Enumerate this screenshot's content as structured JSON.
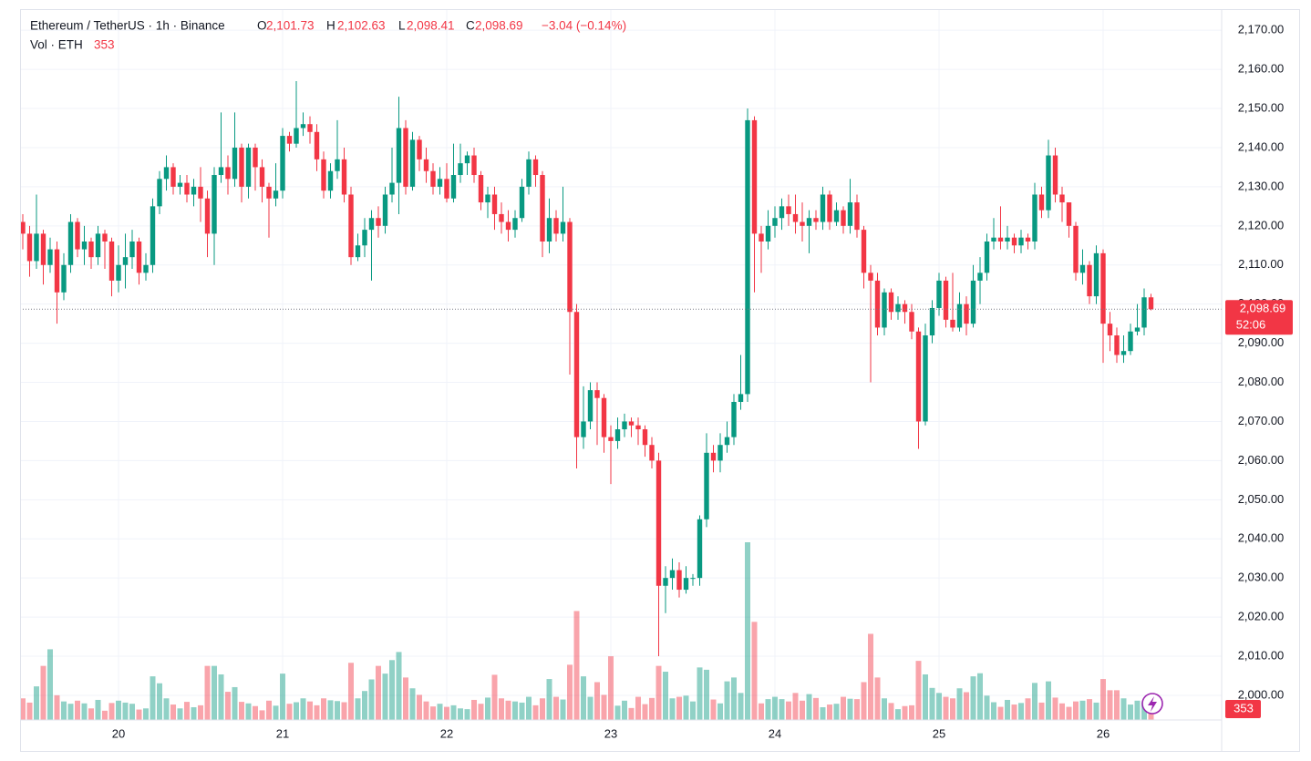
{
  "chart_data": {
    "type": "candlestick",
    "symbol": "Ethereum / TetherUS · 1h · Binance",
    "ohlc_legend": [
      {
        "key": "O",
        "value": 2101.73,
        "label": "2,101.73"
      },
      {
        "key": "H",
        "value": 2102.63,
        "label": "2,102.63"
      },
      {
        "key": "L",
        "value": 2098.41,
        "label": "2,098.41"
      },
      {
        "key": "C",
        "value": 2098.69,
        "label": "2,098.69"
      }
    ],
    "change": {
      "value": -3.04,
      "label": "−3.04 (−0.14%)"
    },
    "volume_title": "Vol · ETH",
    "categories": [
      null,
      null,
      null,
      null,
      null,
      null,
      null,
      null,
      null,
      null,
      null,
      null,
      null,
      null,
      "20",
      null,
      null,
      null,
      null,
      null,
      null,
      null,
      null,
      null,
      null,
      null,
      null,
      null,
      null,
      null,
      null,
      null,
      null,
      null,
      null,
      null,
      null,
      null,
      "21",
      null,
      null,
      null,
      null,
      null,
      null,
      null,
      null,
      null,
      null,
      null,
      null,
      null,
      null,
      null,
      null,
      null,
      null,
      null,
      null,
      null,
      null,
      null,
      "22",
      null,
      null,
      null,
      null,
      null,
      null,
      null,
      null,
      null,
      null,
      null,
      null,
      null,
      null,
      null,
      null,
      null,
      null,
      null,
      null,
      null,
      null,
      null,
      "23",
      null,
      null,
      null,
      null,
      null,
      null,
      null,
      null,
      null,
      null,
      null,
      null,
      null,
      null,
      null,
      null,
      null,
      null,
      null,
      null,
      null,
      null,
      null,
      "24",
      null,
      null,
      null,
      null,
      null,
      null,
      null,
      null,
      null,
      null,
      null,
      null,
      null,
      null,
      null,
      null,
      null,
      null,
      null,
      null,
      null,
      null,
      null,
      "25",
      null,
      null,
      null,
      null,
      null,
      null,
      null,
      null,
      null,
      null,
      null,
      null,
      null,
      null,
      null,
      null,
      null,
      null,
      null,
      null,
      null,
      null,
      null,
      "26",
      null,
      null,
      null,
      null,
      null,
      null,
      null
    ],
    "open": [
      2121,
      2118,
      2111,
      2118,
      2110,
      2114,
      2103,
      2110,
      2121,
      2114,
      2116,
      2112,
      2118,
      2116,
      2106,
      2110,
      2112,
      2116,
      2108,
      2110,
      2125,
      2132,
      2135,
      2130,
      2131,
      2128,
      2130,
      2127,
      2118,
      2133,
      2135,
      2132,
      2140,
      2130,
      2140,
      2135,
      2130,
      2127,
      2129,
      2143,
      2141,
      2145,
      2146,
      2144,
      2137,
      2129,
      2134,
      2137,
      2128,
      2112,
      2115,
      2119,
      2122,
      2120,
      2128,
      2131,
      2145,
      2130,
      2142,
      2137,
      2134,
      2130,
      2132,
      2127,
      2133,
      2136,
      2138,
      2133,
      2126,
      2128,
      2123,
      2121,
      2119,
      2122,
      2130,
      2137,
      2133,
      2116,
      2122,
      2118,
      2121,
      2098,
      2066,
      2070,
      2078,
      2076,
      2066,
      2065,
      2068,
      2070,
      2069,
      2068,
      2064,
      2060,
      2028,
      2030,
      2032,
      2027,
      2030,
      2030,
      2045,
      2062,
      2060,
      2064,
      2066,
      2075,
      2077,
      2147,
      2118,
      2116,
      2120,
      2122,
      2125,
      2123,
      2121,
      2120,
      2122,
      2121,
      2128,
      2121,
      2124,
      2120,
      2126,
      2119,
      2108,
      2106,
      2094,
      2103,
      2098,
      2100,
      2098,
      2093,
      2070,
      2092,
      2099,
      2106,
      2096,
      2094,
      2100,
      2095,
      2106,
      2108,
      2116,
      2117,
      2116,
      2117,
      2115,
      2117,
      2116,
      2128,
      2124,
      2138,
      2128,
      2126,
      2120,
      2108,
      2110,
      2102,
      2113,
      2095,
      2092,
      2087,
      2088,
      2093,
      2094,
      2101.73
    ],
    "high": [
      2123,
      2120,
      2128,
      2119,
      2117,
      2116,
      2113,
      2123,
      2122,
      2120,
      2117,
      2120,
      2119,
      2117,
      2115,
      2118,
      2119,
      2117,
      2113,
      2127,
      2134,
      2138,
      2136,
      2133,
      2133,
      2132,
      2135,
      2129,
      2135,
      2149,
      2138,
      2149,
      2141,
      2141,
      2141,
      2137,
      2131,
      2136,
      2145,
      2144,
      2157,
      2149,
      2148,
      2146,
      2139,
      2136,
      2147,
      2140,
      2130,
      2118,
      2122,
      2124,
      2125,
      2130,
      2140,
      2153,
      2147,
      2144,
      2143,
      2140,
      2136,
      2135,
      2136,
      2141,
      2141,
      2139,
      2140,
      2134,
      2130,
      2130,
      2126,
      2124,
      2124,
      2132,
      2139,
      2138,
      2134,
      2127,
      2124,
      2130,
      2122,
      2100,
      2079,
      2080,
      2080,
      2077,
      2069,
      2071,
      2072,
      2071,
      2071,
      2069,
      2066,
      2062,
      2033,
      2035,
      2034,
      2033,
      2031,
      2046,
      2067,
      2064,
      2067,
      2070,
      2077,
      2087,
      2150,
      2148,
      2120,
      2124,
      2125,
      2127,
      2128,
      2128,
      2126,
      2124,
      2124,
      2130,
      2129,
      2126,
      2125,
      2132,
      2128,
      2120,
      2110,
      2108,
      2104,
      2104,
      2102,
      2101,
      2100,
      2094,
      2095,
      2101,
      2108,
      2107,
      2108,
      2103,
      2102,
      2110,
      2112,
      2118,
      2122,
      2125,
      2120,
      2118,
      2119,
      2118,
      2131,
      2130,
      2142,
      2140,
      2130,
      2126,
      2121,
      2114,
      2111,
      2115,
      2114,
      2098,
      2094,
      2092,
      2095,
      2100,
      2104,
      2102.63
    ],
    "low": [
      2114,
      2107,
      2109,
      2105,
      2108,
      2095,
      2101,
      2108,
      2112,
      2110,
      2109,
      2110,
      2109,
      2102,
      2103,
      2104,
      2109,
      2105,
      2106,
      2108,
      2123,
      2129,
      2128,
      2128,
      2126,
      2125,
      2121,
      2112,
      2110,
      2131,
      2128,
      2130,
      2126,
      2127,
      2129,
      2126,
      2117,
      2125,
      2127,
      2139,
      2140,
      2143,
      2141,
      2134,
      2127,
      2127,
      2132,
      2126,
      2110,
      2111,
      2112,
      2106,
      2117,
      2118,
      2126,
      2123,
      2128,
      2129,
      2134,
      2131,
      2128,
      2128,
      2126,
      2126,
      2131,
      2133,
      2131,
      2124,
      2122,
      2119,
      2118,
      2116,
      2117,
      2121,
      2128,
      2130,
      2112,
      2113,
      2116,
      2116,
      2082,
      2058,
      2063,
      2068,
      2064,
      2062,
      2054,
      2063,
      2066,
      2066,
      2064,
      2061,
      2058,
      2010,
      2021,
      2027,
      2025,
      2026,
      2028,
      2028,
      2043,
      2057,
      2057,
      2062,
      2064,
      2073,
      2075,
      2103,
      2108,
      2114,
      2117,
      2119,
      2120,
      2118,
      2116,
      2113,
      2119,
      2119,
      2119,
      2120,
      2118,
      2118,
      2117,
      2104,
      2080,
      2092,
      2092,
      2096,
      2096,
      2095,
      2091,
      2063,
      2069,
      2090,
      2097,
      2094,
      2093,
      2093,
      2092,
      2094,
      2100,
      2106,
      2114,
      2114,
      2114,
      2113,
      2113,
      2114,
      2114,
      2122,
      2122,
      2126,
      2121,
      2117,
      2106,
      2105,
      2100,
      2100,
      2085,
      2088,
      2085,
      2085,
      2087,
      2092,
      2092,
      2098.41
    ],
    "close": [
      2118,
      2111,
      2118,
      2110,
      2114,
      2103,
      2110,
      2121,
      2114,
      2116,
      2112,
      2118,
      2116,
      2106,
      2110,
      2112,
      2116,
      2108,
      2110,
      2125,
      2132,
      2135,
      2130,
      2131,
      2128,
      2130,
      2127,
      2118,
      2133,
      2135,
      2132,
      2140,
      2130,
      2140,
      2135,
      2130,
      2127,
      2129,
      2143,
      2141,
      2145,
      2146,
      2144,
      2137,
      2129,
      2134,
      2137,
      2128,
      2112,
      2115,
      2119,
      2122,
      2120,
      2128,
      2131,
      2145,
      2130,
      2142,
      2137,
      2134,
      2130,
      2132,
      2127,
      2133,
      2136,
      2138,
      2133,
      2126,
      2128,
      2123,
      2121,
      2119,
      2122,
      2130,
      2137,
      2133,
      2116,
      2122,
      2118,
      2121,
      2098,
      2066,
      2070,
      2078,
      2076,
      2066,
      2065,
      2068,
      2070,
      2069,
      2068,
      2064,
      2060,
      2028,
      2030,
      2032,
      2027,
      2030,
      2030,
      2045,
      2062,
      2060,
      2064,
      2066,
      2075,
      2077,
      2147,
      2118,
      2116,
      2120,
      2122,
      2125,
      2123,
      2121,
      2120,
      2122,
      2121,
      2128,
      2121,
      2124,
      2120,
      2126,
      2119,
      2108,
      2106,
      2094,
      2103,
      2098,
      2100,
      2098,
      2093,
      2070,
      2092,
      2099,
      2106,
      2096,
      2094,
      2100,
      2095,
      2106,
      2108,
      2116,
      2117,
      2116,
      2117,
      2115,
      2117,
      2116,
      2128,
      2124,
      2138,
      2128,
      2126,
      2120,
      2108,
      2110,
      2102,
      2113,
      2095,
      2092,
      2087,
      2088,
      2093,
      2094,
      2101.73,
      2098.69
    ],
    "volume": [
      560,
      450,
      870,
      1400,
      1830,
      640,
      480,
      420,
      500,
      430,
      300,
      520,
      240,
      440,
      500,
      450,
      420,
      270,
      300,
      1130,
      950,
      560,
      400,
      300,
      470,
      330,
      380,
      1400,
      1400,
      1180,
      730,
      850,
      470,
      430,
      360,
      250,
      500,
      370,
      1200,
      420,
      460,
      560,
      480,
      380,
      560,
      510,
      490,
      460,
      1480,
      560,
      750,
      1050,
      1400,
      1200,
      1550,
      1760,
      1100,
      820,
      650,
      480,
      350,
      420,
      340,
      380,
      300,
      280,
      520,
      420,
      580,
      1170,
      560,
      500,
      480,
      450,
      600,
      380,
      560,
      1060,
      600,
      530,
      1430,
      2820,
      1130,
      600,
      980,
      650,
      1650,
      370,
      500,
      310,
      600,
      410,
      570,
      1400,
      1250,
      560,
      600,
      630,
      480,
      1360,
      1300,
      530,
      430,
      1000,
      1100,
      700,
      4600,
      2540,
      430,
      540,
      600,
      540,
      480,
      700,
      500,
      670,
      570,
      330,
      400,
      420,
      600,
      550,
      540,
      980,
      2230,
      1100,
      560,
      440,
      280,
      360,
      380,
      1530,
      1180,
      830,
      700,
      600,
      560,
      820,
      720,
      1130,
      1210,
      630,
      460,
      340,
      520,
      400,
      440,
      560,
      960,
      450,
      1000,
      580,
      430,
      340,
      480,
      500,
      540,
      450,
      1060,
      770,
      770,
      560,
      400,
      500,
      460,
      353
    ],
    "up_color": "#089981",
    "down_color": "#f23645",
    "ylim": [
      1993.7,
      2175.4
    ],
    "yticks": [
      {
        "value": 2000,
        "label": "2,000.00"
      },
      {
        "value": 2010,
        "label": "2,010.00"
      },
      {
        "value": 2020,
        "label": "2,020.00"
      },
      {
        "value": 2030,
        "label": "2,030.00"
      },
      {
        "value": 2040,
        "label": "2,040.00"
      },
      {
        "value": 2050,
        "label": "2,050.00"
      },
      {
        "value": 2060,
        "label": "2,060.00"
      },
      {
        "value": 2070,
        "label": "2,070.00"
      },
      {
        "value": 2080,
        "label": "2,080.00"
      },
      {
        "value": 2090,
        "label": "2,090.00"
      },
      {
        "value": 2100,
        "label": "2,100.00"
      },
      {
        "value": 2110,
        "label": "2,110.00"
      },
      {
        "value": 2120,
        "label": "2,120.00"
      },
      {
        "value": 2130,
        "label": "2,130.00"
      },
      {
        "value": 2140,
        "label": "2,140.00"
      },
      {
        "value": 2150,
        "label": "2,150.00"
      },
      {
        "value": 2160,
        "label": "2,160.00"
      },
      {
        "value": 2170,
        "label": "2,170.00"
      }
    ],
    "grid": true,
    "last_price": {
      "value": 2098.69,
      "label": "2,098.69"
    },
    "countdown": "52:06"
  }
}
